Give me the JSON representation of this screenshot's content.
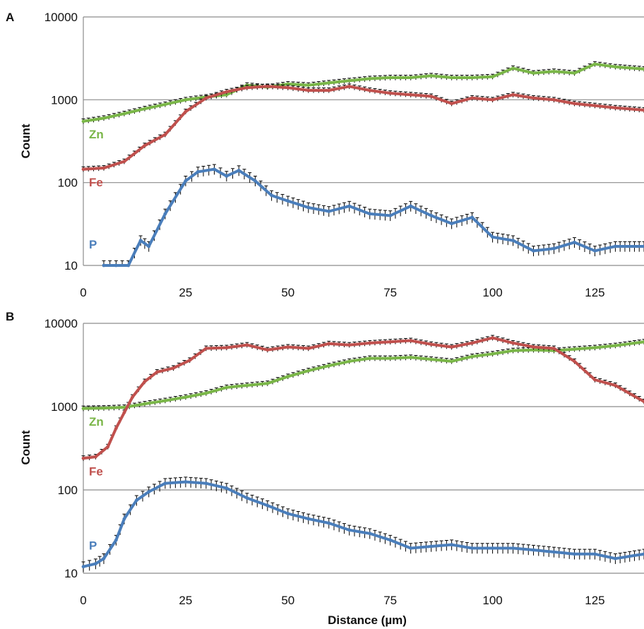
{
  "figure": {
    "xlabel": "Distance (µm)",
    "colors": {
      "Zn": "#7ab648",
      "Fe": "#c0504d",
      "P": "#4a7ebb",
      "errorbar": "#000000",
      "grid": "#8c8c8c"
    }
  },
  "chart_data": [
    {
      "panel": "A",
      "type": "line",
      "ylabel": "Count",
      "yscale": "log",
      "ylim": [
        10,
        10000
      ],
      "xlim": [
        0,
        137
      ],
      "xticks": [
        "0",
        "25",
        "50",
        "75",
        "100",
        "125"
      ],
      "yticks": [
        "10",
        "100",
        "1000",
        "10000"
      ],
      "grid": true,
      "error_bars": true,
      "series": [
        {
          "name": "Zn",
          "label_at_x": 4,
          "x": [
            0,
            5,
            10,
            15,
            20,
            25,
            30,
            35,
            40,
            45,
            50,
            55,
            60,
            65,
            70,
            75,
            80,
            85,
            90,
            95,
            100,
            105,
            110,
            115,
            120,
            125,
            130,
            137
          ],
          "y": [
            550,
            600,
            680,
            780,
            880,
            1000,
            1080,
            1150,
            1500,
            1420,
            1550,
            1500,
            1600,
            1700,
            1800,
            1850,
            1850,
            1950,
            1850,
            1850,
            1900,
            2400,
            2100,
            2200,
            2100,
            2700,
            2500,
            2350
          ]
        },
        {
          "name": "Fe",
          "label_at_x": 4,
          "x": [
            0,
            5,
            10,
            15,
            20,
            25,
            30,
            35,
            40,
            45,
            50,
            55,
            60,
            65,
            70,
            75,
            80,
            85,
            90,
            95,
            100,
            105,
            110,
            115,
            120,
            125,
            130,
            137
          ],
          "y": [
            145,
            150,
            180,
            280,
            380,
            720,
            1050,
            1250,
            1400,
            1450,
            1400,
            1300,
            1300,
            1450,
            1300,
            1200,
            1150,
            1100,
            900,
            1050,
            1000,
            1150,
            1050,
            1000,
            900,
            850,
            800,
            750
          ]
        },
        {
          "name": "P",
          "label_at_x": 4,
          "x": [
            5,
            8,
            11,
            14,
            16,
            20,
            25,
            28,
            32,
            35,
            38,
            42,
            46,
            50,
            55,
            60,
            65,
            70,
            75,
            80,
            85,
            90,
            95,
            100,
            105,
            110,
            115,
            120,
            125,
            130,
            137
          ],
          "y": [
            10,
            10,
            10,
            20,
            17,
            42,
            105,
            135,
            145,
            120,
            140,
            105,
            70,
            60,
            50,
            45,
            52,
            42,
            40,
            52,
            40,
            32,
            38,
            22,
            20,
            15,
            16,
            19,
            15,
            17,
            17
          ]
        }
      ]
    },
    {
      "panel": "B",
      "type": "line",
      "ylabel": "Count",
      "yscale": "log",
      "ylim": [
        10,
        10000
      ],
      "xlim": [
        0,
        137
      ],
      "xticks": [
        "0",
        "25",
        "50",
        "75",
        "100",
        "125"
      ],
      "yticks": [
        "10",
        "100",
        "1000",
        "10000"
      ],
      "grid": true,
      "error_bars": true,
      "series": [
        {
          "name": "Zn",
          "label_at_x": 4,
          "x": [
            0,
            5,
            10,
            15,
            20,
            25,
            30,
            35,
            40,
            45,
            50,
            55,
            60,
            65,
            70,
            75,
            80,
            85,
            90,
            95,
            100,
            105,
            110,
            115,
            120,
            125,
            130,
            137
          ],
          "y": [
            950,
            960,
            980,
            1080,
            1180,
            1300,
            1450,
            1700,
            1800,
            1900,
            2300,
            2700,
            3100,
            3500,
            3800,
            3800,
            3900,
            3700,
            3500,
            4000,
            4300,
            4700,
            4800,
            4700,
            4900,
            5100,
            5400,
            6000
          ]
        },
        {
          "name": "Fe",
          "label_at_x": 4,
          "x": [
            0,
            3,
            6,
            8,
            10,
            12,
            15,
            18,
            22,
            26,
            30,
            35,
            40,
            45,
            50,
            55,
            60,
            65,
            70,
            75,
            80,
            85,
            90,
            95,
            100,
            105,
            110,
            115,
            120,
            125,
            130,
            137
          ],
          "y": [
            240,
            250,
            330,
            550,
            850,
            1300,
            2000,
            2600,
            2900,
            3600,
            5000,
            5100,
            5500,
            4800,
            5200,
            5000,
            5700,
            5500,
            5800,
            6000,
            6200,
            5600,
            5200,
            5800,
            6700,
            5800,
            5200,
            5000,
            3500,
            2100,
            1800,
            1150
          ]
        },
        {
          "name": "P",
          "label_at_x": 4,
          "x": [
            0,
            3,
            5,
            8,
            10,
            13,
            16,
            20,
            25,
            30,
            35,
            40,
            45,
            50,
            55,
            60,
            65,
            70,
            75,
            80,
            85,
            90,
            95,
            100,
            105,
            110,
            115,
            120,
            125,
            130,
            137
          ],
          "y": [
            12,
            13,
            15,
            25,
            45,
            75,
            95,
            120,
            125,
            120,
            105,
            80,
            65,
            52,
            45,
            40,
            33,
            30,
            25,
            20,
            21,
            22,
            20,
            20,
            20,
            19,
            18,
            17,
            17,
            15,
            17
          ]
        }
      ]
    }
  ]
}
